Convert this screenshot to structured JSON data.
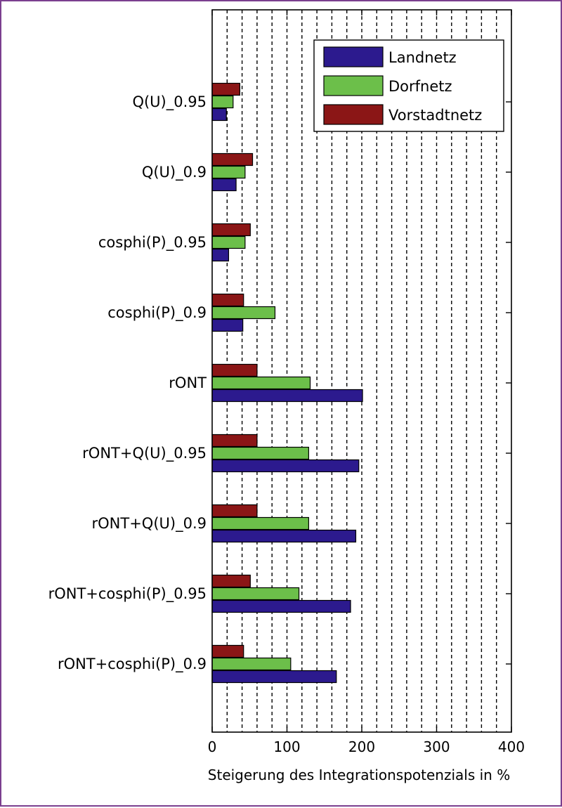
{
  "chart_data": {
    "type": "bar",
    "orientation": "horizontal",
    "title": "",
    "xlabel": "Steigerung des Integrationspotenzials in %",
    "ylabel": "",
    "xlim": [
      0,
      400
    ],
    "xticks": [
      0,
      100,
      200,
      300,
      400
    ],
    "grid": "vertical-dashed",
    "legend_position": "top-right",
    "categories": [
      "Q(U)_0.95",
      "Q(U)_0.9",
      "cosphi(P)_0.95",
      "cosphi(P)_0.9",
      "rONT",
      "rONT+Q(U)_0.95",
      "rONT+Q(U)_0.9",
      "rONT+cosphi(P)_0.95",
      "rONT+cosphi(P)_0.9"
    ],
    "series": [
      {
        "name": "Landnetz",
        "color": "#2c1a8e",
        "values": [
          19,
          32,
          22,
          41,
          201,
          196,
          192,
          185,
          166
        ]
      },
      {
        "name": "Dorfnetz",
        "color": "#6cbf4a",
        "values": [
          28,
          44,
          44,
          84,
          131,
          129,
          129,
          116,
          105
        ]
      },
      {
        "name": "Vorstadtnetz",
        "color": "#8b1616",
        "values": [
          37,
          54,
          51,
          42,
          60,
          60,
          60,
          51,
          42
        ]
      }
    ]
  }
}
